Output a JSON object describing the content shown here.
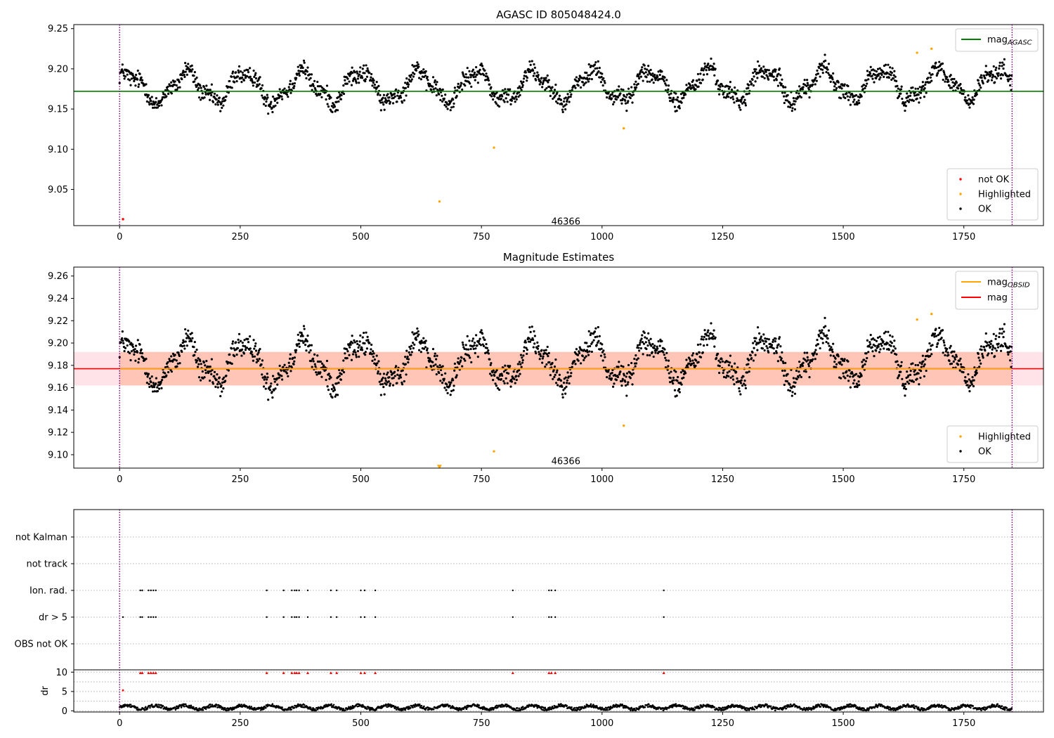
{
  "chart_data": [
    {
      "type": "scatter",
      "title": "AGASC ID 805048424.0",
      "xlim": [
        -95,
        1915
      ],
      "ylim": [
        9.005,
        9.255
      ],
      "xticks": [
        0,
        250,
        500,
        750,
        1000,
        1250,
        1500,
        1750,
        2000
      ],
      "yticks": [
        9.05,
        9.1,
        9.15,
        9.2,
        9.25
      ],
      "ytick_labels": [
        "9.05",
        "9.10",
        "9.15",
        "9.20",
        "9.25"
      ],
      "grid": false,
      "vlines": [
        0,
        1850
      ],
      "hline": {
        "name": "mag_AGASC",
        "y": 9.172,
        "x_range": [
          -95,
          1945
        ],
        "color": "#008000"
      },
      "annotation": {
        "text": "46366",
        "x": 925,
        "y": 9.01
      },
      "legend_upper": {
        "placement": "top-right",
        "entries": [
          {
            "label": "mag",
            "sub": "AGASC",
            "color": "#008000"
          }
        ]
      },
      "legend_lower": {
        "placement": "bottom-right",
        "entries": [
          {
            "label": "not OK",
            "color": "#ff0000"
          },
          {
            "label": "Highlighted",
            "color": "#ffa500"
          },
          {
            "label": "OK",
            "color": "#000000"
          }
        ]
      },
      "series": [
        {
          "name": "OK",
          "color": "#000000",
          "n_points": 1850,
          "x_range": [
            0,
            1850
          ],
          "y_approx_range": [
            9.135,
            9.22
          ]
        },
        {
          "name": "Highlighted",
          "color": "#ffa500",
          "x": [
            663,
            776,
            1045,
            1653,
            1683
          ],
          "y": [
            9.035,
            9.102,
            9.126,
            9.22,
            9.225
          ]
        },
        {
          "name": "not OK",
          "color": "#ff0000",
          "x": [
            7
          ],
          "y": [
            9.013
          ]
        }
      ]
    },
    {
      "type": "scatter",
      "title": "Magnitude Estimates",
      "xlim": [
        -95,
        1915
      ],
      "ylim": [
        9.088,
        9.268
      ],
      "xticks": [
        0,
        250,
        500,
        750,
        1000,
        1250,
        1500,
        1750,
        2000
      ],
      "yticks": [
        9.1,
        9.12,
        9.14,
        9.16,
        9.18,
        9.2,
        9.22,
        9.24,
        9.26
      ],
      "ytick_labels": [
        "9.10",
        "9.12",
        "9.14",
        "9.16",
        "9.18",
        "9.20",
        "9.22",
        "9.24",
        "9.26"
      ],
      "grid": false,
      "vlines": [
        0,
        1850
      ],
      "bands": [
        {
          "name": "mag",
          "y_range": [
            9.162,
            9.192
          ],
          "x_range": [
            -95,
            1945
          ],
          "color": "#ffc0cb"
        },
        {
          "name": "mag_OBSID",
          "y_range": [
            9.162,
            9.192
          ],
          "x_range": [
            0,
            1850
          ],
          "color": "#ffa07a"
        }
      ],
      "hlines": [
        {
          "name": "mag",
          "y": 9.177,
          "x_range": [
            -95,
            1945
          ],
          "color": "#ff0000"
        },
        {
          "name": "mag_OBSID",
          "y": 9.177,
          "x_range": [
            0,
            1850
          ],
          "color": "#ffa500"
        }
      ],
      "annotation": {
        "text": "46366",
        "x": 925,
        "y": 9.094
      },
      "offscale_marker": {
        "x": 663,
        "y": 9.089,
        "color": "#ffa500"
      },
      "legend_upper": {
        "placement": "top-right",
        "entries": [
          {
            "label": "mag",
            "sub": "OBSID",
            "color": "#ffa500"
          },
          {
            "label": "mag",
            "sub": "",
            "color": "#ff0000"
          }
        ]
      },
      "legend_lower": {
        "placement": "bottom-right",
        "entries": [
          {
            "label": "Highlighted",
            "color": "#ffa500"
          },
          {
            "label": "OK",
            "color": "#000000"
          }
        ]
      },
      "series": [
        {
          "name": "OK",
          "color": "#000000",
          "n_points": 1850,
          "x_range": [
            0,
            1850
          ],
          "y_approx_range": [
            9.134,
            9.22
          ]
        },
        {
          "name": "Highlighted",
          "color": "#ffa500",
          "x": [
            776,
            1045,
            1653,
            1683
          ],
          "y": [
            9.103,
            9.126,
            9.221,
            9.226
          ]
        }
      ]
    },
    {
      "type": "scatter",
      "xlim": [
        -95,
        1915
      ],
      "xticks": [
        0,
        250,
        500,
        750,
        1000,
        1250,
        1500,
        1750,
        2000
      ],
      "vlines": [
        0,
        1850
      ],
      "grid": true,
      "flag_rows": [
        "not Kalman",
        "not track",
        "Ion. rad.",
        "dr > 5",
        "OBS not OK"
      ],
      "flags": {
        "ion_rad": [
          43,
          47,
          60,
          65,
          70,
          75,
          305,
          340,
          357,
          363,
          367,
          372,
          390,
          438,
          450,
          500,
          508,
          530,
          815,
          890,
          895,
          903,
          1128
        ],
        "dr_gt_5": [
          7,
          43,
          47,
          60,
          65,
          70,
          75,
          305,
          340,
          357,
          363,
          367,
          372,
          390,
          438,
          450,
          500,
          508,
          530,
          815,
          890,
          895,
          903,
          1128
        ]
      },
      "dr_panel": {
        "ylabel": "dr",
        "ylim": [
          -0.3,
          10.6
        ],
        "yticks": [
          0,
          5,
          10
        ],
        "grid_y": [
          2.5,
          7.5
        ],
        "baseline_n_points": 1850,
        "baseline_y_range": [
          0.1,
          1.9
        ],
        "clipped": {
          "x": [
            43,
            47,
            60,
            65,
            70,
            75,
            305,
            340,
            357,
            363,
            367,
            372,
            390,
            438,
            450,
            500,
            508,
            530,
            815,
            890,
            895,
            903,
            1128
          ],
          "y": 9.8,
          "color": "#ff0000"
        },
        "outlier": {
          "x": 7,
          "y": 5.3,
          "color": "#ff0000"
        }
      }
    }
  ]
}
